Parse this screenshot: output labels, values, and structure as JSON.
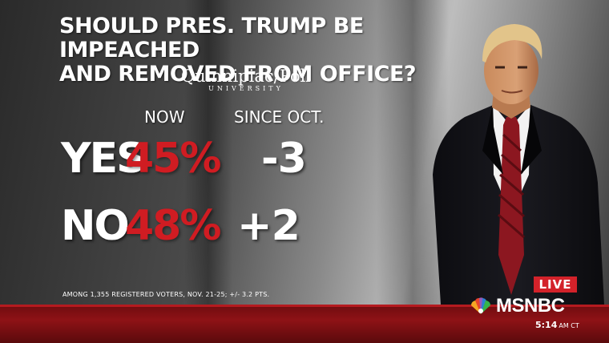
{
  "headline": {
    "line1": "SHOULD PRES. TRUMP BE IMPEACHED",
    "line2": "AND REMOVED FROM OFFICE?"
  },
  "pollster": {
    "name": "Quinnipiac/Poll",
    "sub": "UNIVERSITY"
  },
  "columns": {
    "now": "NOW",
    "since": "SINCE OCT."
  },
  "rows": [
    {
      "label": "YES",
      "now": "45%",
      "change": "-3"
    },
    {
      "label": "NO",
      "now": "48%",
      "change": "+2"
    }
  ],
  "footnote": "AMONG 1,355 REGISTERED VOTERS, NOV. 21-25; +/- 3.2 PTS.",
  "broadcast": {
    "live": "LIVE",
    "network": "MSNBC",
    "time": "5:14",
    "zone": "AM CT"
  },
  "colors": {
    "accent_red": "#d01c22",
    "ticker_red": "#8e1216",
    "text": "#ffffff"
  },
  "icons": {
    "network_logo": "peacock-icon"
  }
}
